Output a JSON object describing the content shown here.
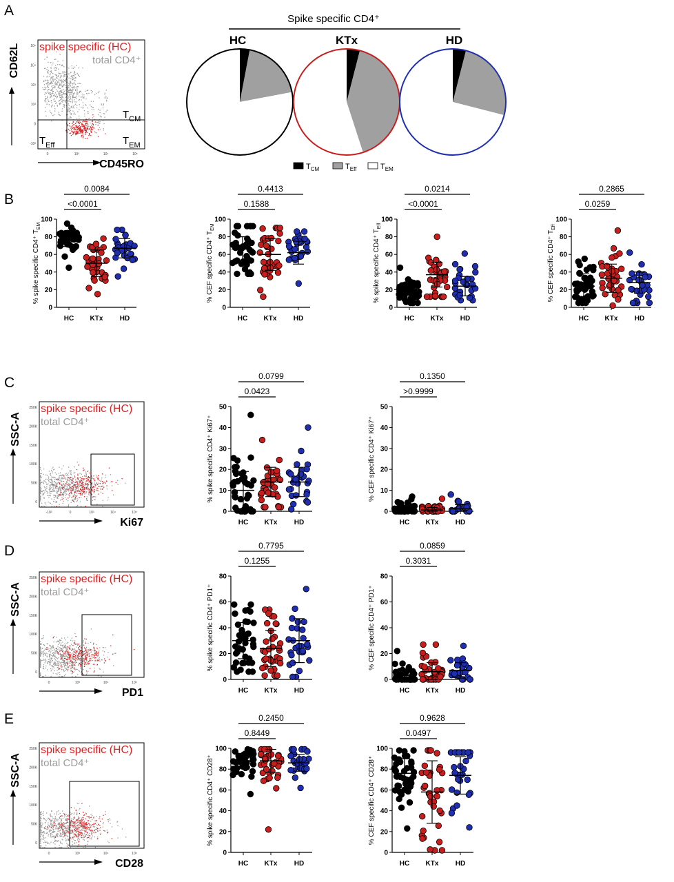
{
  "colors": {
    "HC": "#000000",
    "KTx": "#c81e1e",
    "HD": "#1f2fb0",
    "gray": "#9b9b9b",
    "red": "#e02020"
  },
  "panels": {
    "A": {
      "letter": "A",
      "flow": {
        "y_label": "CD62L",
        "x_label": "CD45RO",
        "legend_spike": "spike specific (HC)",
        "legend_total": "total CD4⁺",
        "y_ticks": [
          "10⁵",
          "10⁴",
          "10³",
          "10²",
          "0",
          "-10²"
        ],
        "x_ticks": [
          "0",
          "10³",
          "10⁴",
          "10⁵"
        ],
        "tcm": "TCM",
        "tem": "TEM",
        "teff": "TEff"
      },
      "pie": {
        "title": "Spike specific CD4⁺",
        "groups": [
          "HC",
          "KTx",
          "HD"
        ],
        "legend": [
          "TCM",
          "TEff",
          "TEM"
        ]
      }
    },
    "B": {
      "letter": "B"
    },
    "C": {
      "letter": "C",
      "flow": {
        "y_label": "SSC-A",
        "x_label": "Ki67",
        "legend_spike": "spike specific (HC)",
        "legend_total": "total CD4⁺",
        "y_ticks": [
          "250K",
          "200K",
          "150K",
          "100K",
          "50K",
          "0"
        ],
        "x_ticks": [
          "-10³",
          "0",
          "10³",
          "10⁴",
          "10⁵"
        ]
      }
    },
    "D": {
      "letter": "D",
      "flow": {
        "y_label": "SSC-A",
        "x_label": "PD1",
        "legend_spike": "spike specific (HC)",
        "legend_total": "total CD4⁺",
        "y_ticks": [
          "250K",
          "200K",
          "150K",
          "100K",
          "50K",
          "0"
        ],
        "x_ticks": [
          "0",
          "10³",
          "10⁴",
          "10⁵"
        ]
      }
    },
    "E": {
      "letter": "E",
      "flow": {
        "y_label": "SSC-A",
        "x_label": "CD28",
        "legend_spike": "spike specific (HC)",
        "legend_total": "total CD4⁺",
        "y_ticks": [
          "250K",
          "200K",
          "150K",
          "100K",
          "50K",
          "0"
        ],
        "x_ticks": [
          "0",
          "10³",
          "10⁴",
          "10⁵"
        ]
      }
    }
  },
  "chart_data": [
    {
      "id": "A-pies",
      "type": "pie",
      "title": "Spike specific CD4⁺",
      "categories": [
        "TCM",
        "TEff",
        "TEM"
      ],
      "series": [
        {
          "name": "HC",
          "values": [
            3,
            19,
            78
          ]
        },
        {
          "name": "KTx",
          "values": [
            4,
            41,
            55
          ]
        },
        {
          "name": "HD",
          "values": [
            4,
            25,
            71
          ]
        }
      ]
    },
    {
      "id": "B1",
      "type": "scatter",
      "ylabel": "% spike specific CD4⁺ TEM",
      "categories": [
        "HC",
        "KTx",
        "HD"
      ],
      "ylim": [
        0,
        100
      ],
      "yticks": [
        0,
        20,
        40,
        60,
        80,
        100
      ],
      "mean": [
        77,
        50,
        67
      ],
      "sd": [
        8,
        15,
        11
      ],
      "min": [
        45,
        15,
        35
      ],
      "max": [
        95,
        78,
        88
      ],
      "n": [
        40,
        36,
        28
      ],
      "pvalues": [
        {
          "from": 0,
          "to": 1,
          "label": "<0.0001"
        },
        {
          "from": 0,
          "to": 2,
          "label": "0.0084"
        }
      ]
    },
    {
      "id": "B2",
      "type": "scatter",
      "ylabel": "% CEF specific CD4⁺ TEM",
      "categories": [
        "HC",
        "KTx",
        "HD"
      ],
      "ylim": [
        0,
        100
      ],
      "yticks": [
        0,
        20,
        40,
        60,
        80,
        100
      ],
      "mean": [
        66,
        60,
        62
      ],
      "sd": [
        14,
        18,
        13
      ],
      "min": [
        38,
        12,
        27
      ],
      "max": [
        92,
        90,
        86
      ],
      "n": [
        40,
        36,
        28
      ],
      "pvalues": [
        {
          "from": 0,
          "to": 1,
          "label": "0.1588"
        },
        {
          "from": 0,
          "to": 2,
          "label": "0.4413"
        }
      ]
    },
    {
      "id": "B3",
      "type": "scatter",
      "ylabel": "% spike specific CD4⁺ TEff",
      "categories": [
        "HC",
        "KTx",
        "HD"
      ],
      "ylim": [
        0,
        100
      ],
      "yticks": [
        0,
        20,
        40,
        60,
        80,
        100
      ],
      "mean": [
        17,
        37,
        24
      ],
      "sd": [
        8,
        14,
        11
      ],
      "min": [
        5,
        12,
        8
      ],
      "max": [
        45,
        80,
        61
      ],
      "n": [
        40,
        36,
        28
      ],
      "pvalues": [
        {
          "from": 0,
          "to": 1,
          "label": "<0.0001"
        },
        {
          "from": 0,
          "to": 2,
          "label": "0.0214"
        }
      ]
    },
    {
      "id": "B4",
      "type": "scatter",
      "ylabel": "% CEF specific CD4⁺ TEff",
      "categories": [
        "HC",
        "KTx",
        "HD"
      ],
      "ylim": [
        0,
        100
      ],
      "yticks": [
        0,
        20,
        40,
        60,
        80,
        100
      ],
      "mean": [
        24,
        33,
        28
      ],
      "sd": [
        14,
        16,
        12
      ],
      "min": [
        5,
        2,
        5
      ],
      "max": [
        55,
        87,
        62
      ],
      "n": [
        40,
        36,
        28
      ],
      "pvalues": [
        {
          "from": 0,
          "to": 1,
          "label": "0.0259"
        },
        {
          "from": 0,
          "to": 2,
          "label": "0.2865"
        }
      ]
    },
    {
      "id": "C1",
      "type": "scatter",
      "ylabel": "% spike specific CD4⁺ Ki67⁺",
      "categories": [
        "HC",
        "KTx",
        "HD"
      ],
      "ylim": [
        0,
        50
      ],
      "yticks": [
        0,
        10,
        20,
        30,
        40,
        50
      ],
      "mean": [
        10,
        14,
        14
      ],
      "sd": [
        9,
        7,
        7
      ],
      "min": [
        0,
        2,
        1
      ],
      "max": [
        46,
        34,
        40
      ],
      "n": [
        40,
        36,
        28
      ],
      "pvalues": [
        {
          "from": 0,
          "to": 1,
          "label": "0.0423"
        },
        {
          "from": 0,
          "to": 2,
          "label": "0.0799"
        }
      ]
    },
    {
      "id": "C2",
      "type": "scatter",
      "ylabel": "% CEF specific CD4⁺ Ki67⁺",
      "categories": [
        "HC",
        "KTx",
        "HD"
      ],
      "ylim": [
        0,
        50
      ],
      "yticks": [
        0,
        10,
        20,
        30,
        40,
        50
      ],
      "mean": [
        0.8,
        0.6,
        1.2
      ],
      "sd": [
        1.5,
        1.2,
        2
      ],
      "min": [
        0,
        0,
        0
      ],
      "max": [
        7,
        6,
        8
      ],
      "n": [
        40,
        36,
        28
      ],
      "pvalues": [
        {
          "from": 0,
          "to": 1,
          "label": ">0.9999"
        },
        {
          "from": 0,
          "to": 2,
          "label": "0.1350"
        }
      ]
    },
    {
      "id": "D1",
      "type": "scatter",
      "ylabel": "% spike specific CD4⁺ PD1⁺",
      "categories": [
        "HC",
        "KTx",
        "HD"
      ],
      "ylim": [
        0,
        80
      ],
      "yticks": [
        0,
        20,
        40,
        60,
        80
      ],
      "mean": [
        30,
        24,
        30
      ],
      "sd": [
        14,
        14,
        17
      ],
      "min": [
        6,
        3,
        2
      ],
      "max": [
        58,
        54,
        70
      ],
      "n": [
        40,
        36,
        28
      ],
      "pvalues": [
        {
          "from": 0,
          "to": 1,
          "label": "0.1255"
        },
        {
          "from": 0,
          "to": 2,
          "label": "0.7795"
        }
      ]
    },
    {
      "id": "D2",
      "type": "scatter",
      "ylabel": "% CEF specific CD4⁺ PD1⁺",
      "categories": [
        "HC",
        "KTx",
        "HD"
      ],
      "ylim": [
        0,
        80
      ],
      "yticks": [
        0,
        20,
        40,
        60,
        80
      ],
      "mean": [
        3,
        6,
        7
      ],
      "sd": [
        5,
        7,
        6
      ],
      "min": [
        0,
        0,
        0
      ],
      "max": [
        22,
        27,
        26
      ],
      "n": [
        40,
        36,
        28
      ],
      "pvalues": [
        {
          "from": 0,
          "to": 1,
          "label": "0.3031"
        },
        {
          "from": 0,
          "to": 2,
          "label": "0.0859"
        }
      ]
    },
    {
      "id": "E1",
      "type": "scatter",
      "ylabel": "% spike specific CD4⁺ CD28⁺",
      "categories": [
        "HC",
        "KTx",
        "HD"
      ],
      "ylim": [
        0,
        100
      ],
      "yticks": [
        0,
        20,
        40,
        60,
        80,
        100
      ],
      "mean": [
        88,
        88,
        86
      ],
      "sd": [
        7,
        11,
        8
      ],
      "min": [
        56,
        22,
        62
      ],
      "max": [
        99,
        99,
        99
      ],
      "n": [
        40,
        36,
        28
      ],
      "pvalues": [
        {
          "from": 0,
          "to": 1,
          "label": "0.8449"
        },
        {
          "from": 0,
          "to": 2,
          "label": "0.2450"
        }
      ]
    },
    {
      "id": "E2",
      "type": "scatter",
      "ylabel": "% CEF specific CD4⁺ CD28⁺",
      "categories": [
        "HC",
        "KTx",
        "HD"
      ],
      "ylim": [
        0,
        100
      ],
      "yticks": [
        0,
        20,
        40,
        60,
        80,
        100
      ],
      "mean": [
        76,
        58,
        74
      ],
      "sd": [
        14,
        30,
        18
      ],
      "min": [
        23,
        2,
        24
      ],
      "max": [
        98,
        98,
        96
      ],
      "n": [
        40,
        36,
        28
      ],
      "pvalues": [
        {
          "from": 0,
          "to": 1,
          "label": "0.0497"
        },
        {
          "from": 0,
          "to": 2,
          "label": "0.9628"
        }
      ]
    }
  ]
}
